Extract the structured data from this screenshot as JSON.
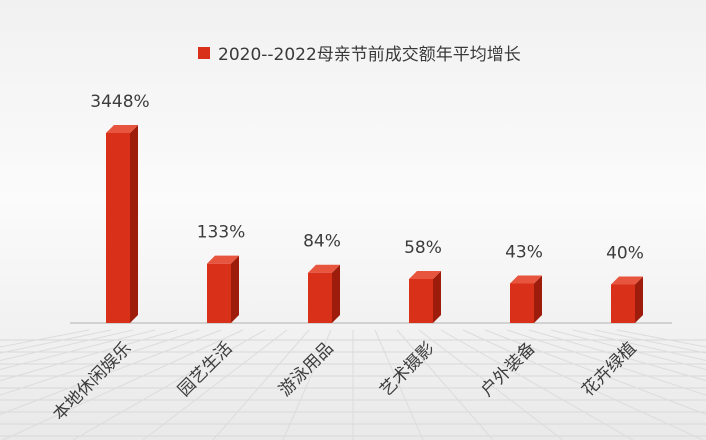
{
  "chart_data": {
    "type": "bar",
    "legend": "2020--2022母亲节前成交额年平均增长",
    "categories": [
      "本地休闲娱乐",
      "园艺生活",
      "游泳用品",
      "艺术摄影",
      "户外装备",
      "花卉绿植"
    ],
    "values": [
      3448,
      133,
      84,
      58,
      43,
      40
    ],
    "value_labels": [
      "3448%",
      "133%",
      "84%",
      "58%",
      "43%",
      "40%"
    ],
    "unit": "%",
    "color": "#d9301a",
    "xlabel": "",
    "ylabel": ""
  }
}
